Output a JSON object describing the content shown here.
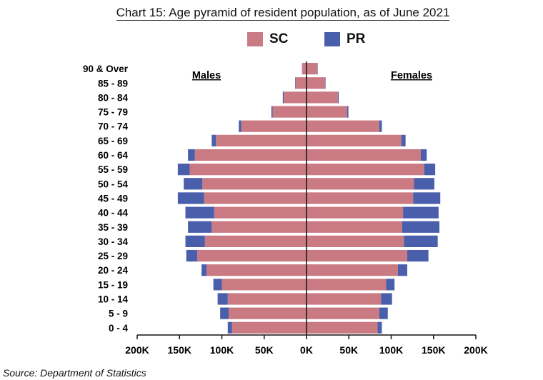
{
  "chart_data": {
    "type": "bar",
    "orientation": "horizontal-pyramid",
    "title": "Chart 15: Age pyramid of resident population, as of June 2021",
    "source": "Source: Department of Statistics",
    "left_label": "Males",
    "right_label": "Females",
    "categories": [
      "90 & Over",
      "85 - 89",
      "80 - 84",
      "75 - 79",
      "70 - 74",
      "65 - 69",
      "60 - 64",
      "55 - 59",
      "50 - 54",
      "45 - 49",
      "40 - 44",
      "35 - 39",
      "30 - 34",
      "25 - 29",
      "20 - 24",
      "15 - 19",
      "10 - 14",
      "5 - 9",
      "0 - 4"
    ],
    "x_ticks": [
      "200K",
      "150K",
      "100K",
      "50K",
      "0K",
      "50K",
      "100K",
      "150K",
      "200K"
    ],
    "xlim": [
      -200000,
      200000
    ],
    "colors": {
      "SC": "#c97a83",
      "PR": "#4a5fab"
    },
    "series": [
      {
        "name": "SC",
        "side": "Males",
        "values": [
          5000,
          13000,
          27000,
          40000,
          77000,
          107000,
          132000,
          138000,
          123000,
          121000,
          109000,
          112000,
          120000,
          129000,
          118000,
          100000,
          93000,
          92000,
          88000
        ]
      },
      {
        "name": "PR",
        "side": "Males",
        "values": [
          300,
          500,
          1000,
          1500,
          3000,
          5000,
          8000,
          14000,
          22000,
          31000,
          34000,
          28000,
          23000,
          13000,
          6000,
          10000,
          12000,
          10000,
          5000
        ]
      },
      {
        "name": "SC",
        "side": "Females",
        "values": [
          13000,
          22000,
          37000,
          48000,
          86000,
          112000,
          135000,
          139000,
          127000,
          126000,
          114000,
          113000,
          115000,
          119000,
          108000,
          94000,
          88000,
          86000,
          84000
        ]
      },
      {
        "name": "PR",
        "side": "Females",
        "values": [
          300,
          500,
          1000,
          1500,
          3000,
          5000,
          7000,
          13000,
          24000,
          32000,
          42000,
          44000,
          40000,
          25000,
          11000,
          10000,
          13000,
          10000,
          5000
        ]
      }
    ]
  }
}
